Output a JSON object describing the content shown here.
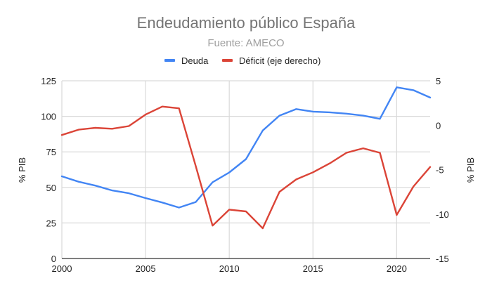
{
  "chart_data": {
    "type": "line",
    "title": "Endeudamiento público España",
    "subtitle": "Fuente: AMECO",
    "xlabel": "",
    "ylabel_left": "% PIB",
    "ylabel_right": "% PIB",
    "x": [
      2000,
      2001,
      2002,
      2003,
      2004,
      2005,
      2006,
      2007,
      2008,
      2009,
      2010,
      2011,
      2012,
      2013,
      2014,
      2015,
      2016,
      2017,
      2018,
      2019,
      2020,
      2021,
      2022
    ],
    "x_ticks": [
      "2000",
      "2005",
      "2010",
      "2015",
      "2020"
    ],
    "x_tick_values": [
      2000,
      2005,
      2010,
      2015,
      2020
    ],
    "xlim": [
      2000,
      2022
    ],
    "y_left": {
      "range": [
        0,
        125
      ],
      "ticks": [
        "0",
        "25",
        "50",
        "75",
        "100",
        "125"
      ],
      "tick_values": [
        0,
        25,
        50,
        75,
        100,
        125
      ]
    },
    "y_right": {
      "range": [
        -15,
        5
      ],
      "ticks": [
        "-15",
        "-10",
        "-5",
        "0",
        "5"
      ],
      "tick_values": [
        -15,
        -10,
        -5,
        0,
        5
      ]
    },
    "grid": true,
    "legend_position": "top",
    "series": [
      {
        "name": "Deuda",
        "axis": "left",
        "color": "#4285F4",
        "values": [
          57.8,
          54.0,
          51.3,
          47.9,
          45.9,
          42.5,
          39.4,
          35.8,
          39.7,
          53.6,
          60.5,
          69.9,
          90.0,
          100.5,
          105.1,
          103.3,
          102.8,
          101.9,
          100.5,
          98.2,
          120.4,
          118.4,
          113.2
        ]
      },
      {
        "name": "Déficit (eje derecho)",
        "axis": "right",
        "color": "#DB4437",
        "values": [
          -1.1,
          -0.5,
          -0.3,
          -0.4,
          -0.1,
          1.2,
          2.1,
          1.9,
          -4.6,
          -11.3,
          -9.5,
          -9.7,
          -11.6,
          -7.5,
          -6.1,
          -5.3,
          -4.3,
          -3.1,
          -2.6,
          -3.1,
          -10.1,
          -6.9,
          -4.7
        ]
      }
    ]
  }
}
